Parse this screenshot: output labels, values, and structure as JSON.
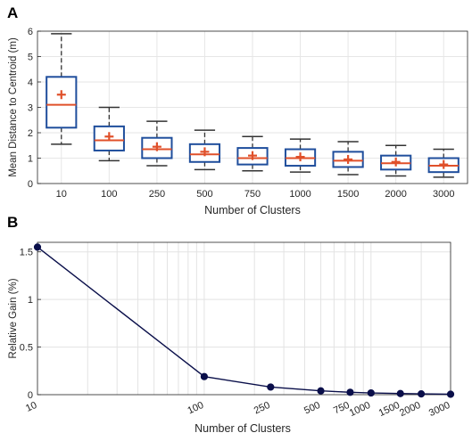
{
  "chart_data": [
    {
      "panel_label": "A",
      "type": "box",
      "xlabel": "Number of Clusters",
      "ylabel": "Mean Distance to Centroid (m)",
      "ylim": [
        0,
        6
      ],
      "yticks": [
        "0",
        "1",
        "2",
        "3",
        "4",
        "5",
        "6"
      ],
      "categories": [
        "10",
        "100",
        "250",
        "500",
        "750",
        "1000",
        "1500",
        "2000",
        "3000"
      ],
      "boxes": [
        {
          "min": 1.55,
          "q1": 2.2,
          "median": 3.1,
          "q3": 4.2,
          "max": 5.9,
          "mean": 3.5
        },
        {
          "min": 0.9,
          "q1": 1.3,
          "median": 1.7,
          "q3": 2.25,
          "max": 3.0,
          "mean": 1.85
        },
        {
          "min": 0.7,
          "q1": 1.0,
          "median": 1.35,
          "q3": 1.8,
          "max": 2.45,
          "mean": 1.45
        },
        {
          "min": 0.55,
          "q1": 0.85,
          "median": 1.15,
          "q3": 1.55,
          "max": 2.1,
          "mean": 1.25
        },
        {
          "min": 0.5,
          "q1": 0.75,
          "median": 1.0,
          "q3": 1.4,
          "max": 1.85,
          "mean": 1.1
        },
        {
          "min": 0.45,
          "q1": 0.7,
          "median": 1.0,
          "q3": 1.35,
          "max": 1.75,
          "mean": 1.05
        },
        {
          "min": 0.35,
          "q1": 0.65,
          "median": 0.9,
          "q3": 1.25,
          "max": 1.65,
          "mean": 0.95
        },
        {
          "min": 0.3,
          "q1": 0.55,
          "median": 0.8,
          "q3": 1.1,
          "max": 1.5,
          "mean": 0.85
        },
        {
          "min": 0.25,
          "q1": 0.45,
          "median": 0.7,
          "q3": 1.0,
          "max": 1.35,
          "mean": 0.75
        }
      ],
      "grid": true,
      "colors": {
        "box": "#1f4e9c",
        "median": "#e0502a",
        "mean": "#e0502a",
        "whisker": "#333333"
      }
    },
    {
      "panel_label": "B",
      "type": "line",
      "xlabel": "Number of Clusters",
      "ylabel": "Relative Gain (%)",
      "xscale": "log",
      "xlim": [
        10,
        3000
      ],
      "ylim": [
        0,
        1.6
      ],
      "yticks": [
        "0",
        "0.5",
        "1",
        "1.5"
      ],
      "x": [
        10,
        100,
        250,
        500,
        750,
        1000,
        1500,
        2000,
        3000
      ],
      "xticklabels": [
        "10",
        "100",
        "250",
        "500",
        "750",
        "1000",
        "1500",
        "2000",
        "3000"
      ],
      "y": [
        1.55,
        0.19,
        0.08,
        0.04,
        0.025,
        0.018,
        0.012,
        0.008,
        0.005
      ],
      "grid": true,
      "colors": {
        "line": "#0a0f4a",
        "marker": "#0a0f4a"
      }
    }
  ]
}
